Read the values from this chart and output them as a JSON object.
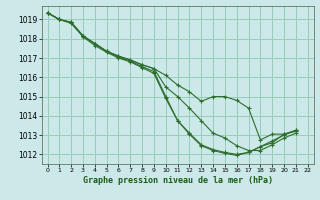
{
  "title": "Graphe pression niveau de la mer (hPa)",
  "bg_color": "#cce8e8",
  "grid_color": "#99ccbb",
  "line_color": "#2d6e2d",
  "marker_color": "#2d6e2d",
  "xlim": [
    -0.5,
    22.5
  ],
  "ylim": [
    1011.5,
    1019.7
  ],
  "xticks": [
    0,
    1,
    2,
    3,
    4,
    5,
    6,
    7,
    8,
    9,
    10,
    11,
    12,
    13,
    14,
    15,
    16,
    17,
    18,
    19,
    20,
    21,
    22
  ],
  "yticks": [
    1012,
    1013,
    1014,
    1015,
    1016,
    1017,
    1018,
    1019
  ],
  "series": [
    [
      1019.35,
      1019.0,
      1018.85,
      1018.15,
      1017.75,
      1017.35,
      1017.1,
      1016.9,
      1016.65,
      1016.45,
      1016.1,
      1015.6,
      1015.25,
      1014.75,
      1015.0,
      1015.0,
      1014.8,
      1014.4,
      1012.75,
      1013.05,
      1013.05,
      1013.25,
      null
    ],
    [
      1019.35,
      1019.0,
      1018.85,
      1018.15,
      1017.75,
      1017.35,
      1017.1,
      1016.9,
      1016.65,
      1016.45,
      1015.5,
      1015.0,
      1014.4,
      1013.75,
      1013.1,
      1012.85,
      1012.45,
      1012.2,
      1012.2,
      1012.5,
      1012.85,
      1013.1,
      null
    ],
    [
      1019.35,
      1019.0,
      1018.85,
      1018.15,
      1017.75,
      1017.35,
      1017.05,
      1016.85,
      1016.55,
      1016.3,
      1015.0,
      1013.75,
      1013.1,
      1012.5,
      1012.25,
      1012.1,
      1012.0,
      1012.1,
      1012.4,
      1012.7,
      1013.0,
      1013.25,
      null
    ],
    [
      1019.35,
      1019.0,
      1018.8,
      1018.1,
      1017.65,
      1017.3,
      1017.0,
      1016.8,
      1016.5,
      1016.2,
      1014.9,
      1013.75,
      1013.05,
      1012.45,
      1012.2,
      1012.05,
      1011.95,
      1012.1,
      1012.4,
      1012.6,
      1013.05,
      1013.2,
      null
    ]
  ],
  "x_hours": [
    0,
    1,
    2,
    3,
    4,
    5,
    6,
    7,
    8,
    9,
    10,
    11,
    12,
    13,
    14,
    15,
    16,
    17,
    18,
    19,
    20,
    21,
    22
  ]
}
